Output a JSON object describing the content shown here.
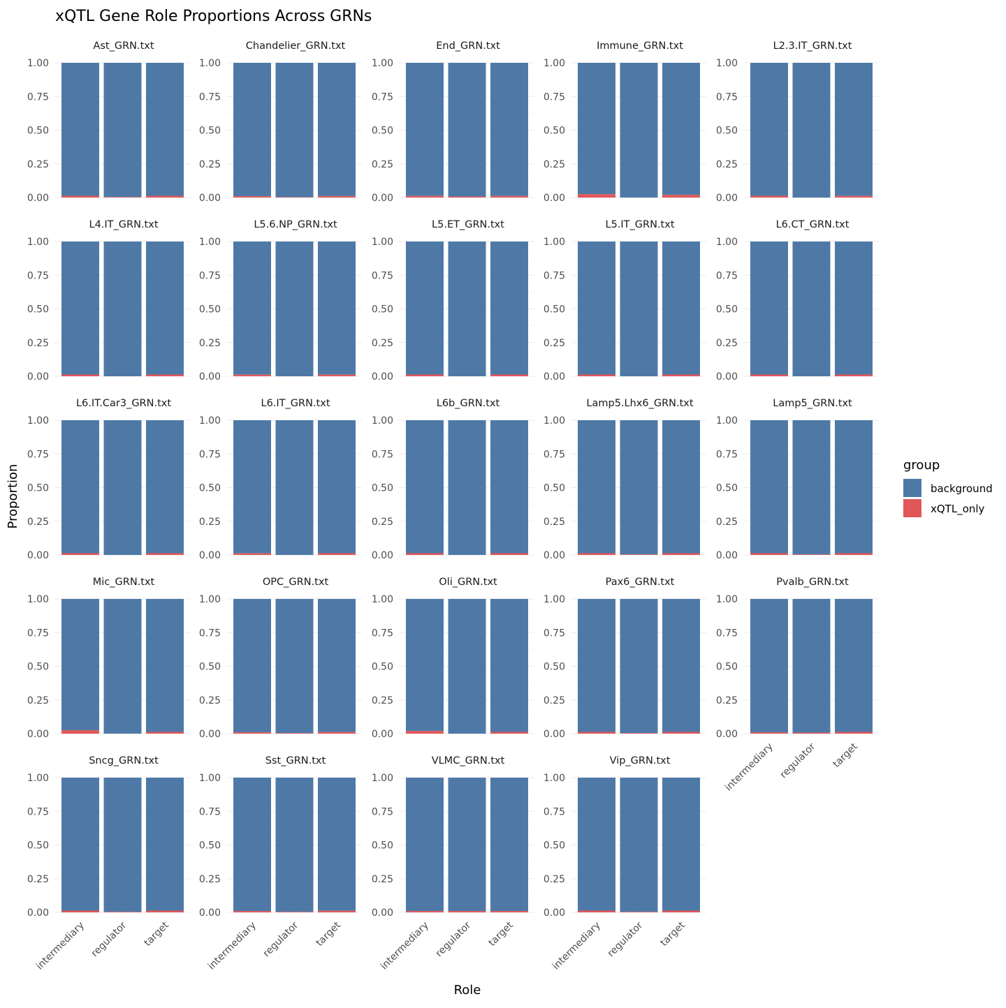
{
  "chart_data": {
    "type": "bar",
    "stacked": true,
    "title": "xQTL Gene Role Proportions Across GRNs",
    "xlabel": "Role",
    "ylabel": "Proportion",
    "ylim": [
      0,
      1
    ],
    "y_ticks": [
      "0.00",
      "0.25",
      "0.50",
      "0.75",
      "1.00"
    ],
    "categories": [
      "intermediary",
      "regulator",
      "target"
    ],
    "legend": {
      "title": "group",
      "position": "right",
      "items": [
        {
          "name": "background",
          "color": "#4e79a7"
        },
        {
          "name": "xQTL_only",
          "color": "#e15759"
        }
      ]
    },
    "grid": true,
    "facets": [
      {
        "name": "Ast_GRN.txt",
        "xQTL_only": [
          0.013,
          0.004,
          0.013
        ]
      },
      {
        "name": "Chandelier_GRN.txt",
        "xQTL_only": [
          0.01,
          0.003,
          0.011
        ]
      },
      {
        "name": "End_GRN.txt",
        "xQTL_only": [
          0.012,
          0.008,
          0.012
        ]
      },
      {
        "name": "Immune_GRN.txt",
        "xQTL_only": [
          0.025,
          0.0,
          0.02
        ]
      },
      {
        "name": "L2.3.IT_GRN.txt",
        "xQTL_only": [
          0.013,
          0.0,
          0.012
        ]
      },
      {
        "name": "L4.IT_GRN.txt",
        "xQTL_only": [
          0.013,
          0.0,
          0.013
        ]
      },
      {
        "name": "L5.6.NP_GRN.txt",
        "xQTL_only": [
          0.012,
          0.0,
          0.012
        ]
      },
      {
        "name": "L5.ET_GRN.txt",
        "xQTL_only": [
          0.013,
          0.0,
          0.013
        ]
      },
      {
        "name": "L5.IT_GRN.txt",
        "xQTL_only": [
          0.013,
          0.0,
          0.013
        ]
      },
      {
        "name": "L6.CT_GRN.txt",
        "xQTL_only": [
          0.013,
          0.0,
          0.013
        ]
      },
      {
        "name": "L6.IT.Car3_GRN.txt",
        "xQTL_only": [
          0.013,
          0.0,
          0.013
        ]
      },
      {
        "name": "L6.IT_GRN.txt",
        "xQTL_only": [
          0.012,
          0.0,
          0.013
        ]
      },
      {
        "name": "L6b_GRN.txt",
        "xQTL_only": [
          0.013,
          0.0,
          0.013
        ]
      },
      {
        "name": "Lamp5.Lhx6_GRN.txt",
        "xQTL_only": [
          0.013,
          0.004,
          0.013
        ]
      },
      {
        "name": "Lamp5_GRN.txt",
        "xQTL_only": [
          0.013,
          0.004,
          0.013
        ]
      },
      {
        "name": "Mic_GRN.txt",
        "xQTL_only": [
          0.025,
          0.0,
          0.013
        ]
      },
      {
        "name": "OPC_GRN.txt",
        "xQTL_only": [
          0.01,
          0.004,
          0.012
        ]
      },
      {
        "name": "Oli_GRN.txt",
        "xQTL_only": [
          0.02,
          0.0,
          0.013
        ]
      },
      {
        "name": "Pax6_GRN.txt",
        "xQTL_only": [
          0.013,
          0.004,
          0.013
        ]
      },
      {
        "name": "Pvalb_GRN.txt",
        "xQTL_only": [
          0.01,
          0.008,
          0.013
        ]
      },
      {
        "name": "Sncg_GRN.txt",
        "xQTL_only": [
          0.013,
          0.004,
          0.013
        ]
      },
      {
        "name": "Sst_GRN.txt",
        "xQTL_only": [
          0.01,
          0.004,
          0.012
        ]
      },
      {
        "name": "VLMC_GRN.txt",
        "xQTL_only": [
          0.01,
          0.01,
          0.01
        ]
      },
      {
        "name": "Vip_GRN.txt",
        "xQTL_only": [
          0.013,
          0.004,
          0.013
        ]
      }
    ]
  }
}
